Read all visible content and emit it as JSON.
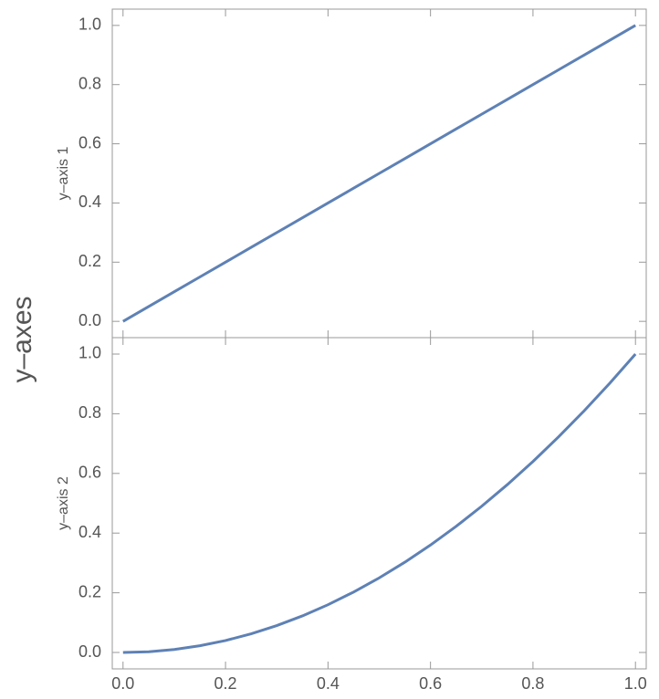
{
  "ylabel": "y–axes",
  "chart_data": [
    {
      "type": "line",
      "ylabel": "y–axis 1",
      "color": "#5e81b5",
      "x": [
        0,
        0.05,
        0.1,
        0.15,
        0.2,
        0.25,
        0.3,
        0.35,
        0.4,
        0.45,
        0.5,
        0.55,
        0.6,
        0.65,
        0.7,
        0.75,
        0.8,
        0.85,
        0.9,
        0.95,
        1
      ],
      "values": [
        0,
        0.05,
        0.1,
        0.15,
        0.2,
        0.25,
        0.3,
        0.35,
        0.4,
        0.45,
        0.5,
        0.55,
        0.6,
        0.65,
        0.7,
        0.75,
        0.8,
        0.85,
        0.9,
        0.95,
        1
      ],
      "xlim": [
        -0.021,
        1.021
      ],
      "ylim": [
        -0.055,
        1.055
      ],
      "yticks": [
        {
          "value": 0,
          "label": "0.0"
        },
        0.2,
        0.4,
        0.6,
        0.8,
        {
          "value": 1,
          "label": "1.0"
        }
      ]
    },
    {
      "type": "line",
      "ylabel": "y–axis 2",
      "color": "#5e81b5",
      "x": [
        0,
        0.05,
        0.1,
        0.15,
        0.2,
        0.25,
        0.3,
        0.35,
        0.4,
        0.45,
        0.5,
        0.55,
        0.6,
        0.65,
        0.7,
        0.75,
        0.8,
        0.85,
        0.9,
        0.95,
        1
      ],
      "values": [
        0,
        0.0025,
        0.01,
        0.0225,
        0.04,
        0.0625,
        0.09,
        0.1225,
        0.16,
        0.2025,
        0.25,
        0.3025,
        0.36,
        0.4225,
        0.49,
        0.5625,
        0.64,
        0.7225,
        0.81,
        0.9025,
        1
      ],
      "xlim": [
        -0.021,
        1.021
      ],
      "ylim": [
        -0.055,
        1.055
      ],
      "yticks": [
        {
          "value": 0,
          "label": "0.0"
        },
        0.2,
        0.4,
        0.6,
        0.8,
        {
          "value": 1,
          "label": "1.0"
        }
      ],
      "xticks": [
        {
          "value": 0,
          "label": "0.0"
        },
        0.2,
        0.4,
        0.6,
        0.8,
        {
          "value": 1,
          "label": "1.0"
        }
      ]
    }
  ]
}
